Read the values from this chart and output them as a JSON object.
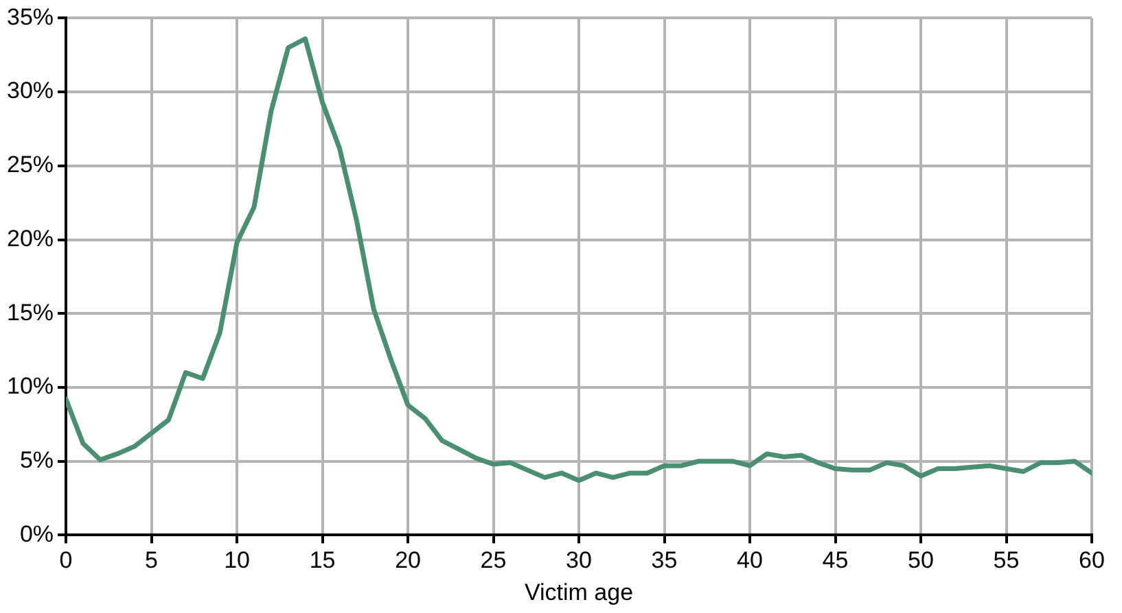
{
  "chart_data": {
    "type": "line",
    "xlabel": "Victim age",
    "x": [
      0,
      1,
      2,
      3,
      4,
      5,
      6,
      7,
      8,
      9,
      10,
      11,
      12,
      13,
      14,
      15,
      16,
      17,
      18,
      19,
      20,
      21,
      22,
      23,
      24,
      25,
      26,
      27,
      28,
      29,
      30,
      31,
      32,
      33,
      34,
      35,
      36,
      37,
      38,
      39,
      40,
      41,
      42,
      43,
      44,
      45,
      46,
      47,
      48,
      49,
      50,
      51,
      52,
      53,
      54,
      55,
      56,
      57,
      58,
      59,
      60
    ],
    "series": [
      {
        "color": "#4a8f72",
        "values": [
          9.2,
          6.2,
          5.1,
          5.5,
          6.0,
          6.9,
          7.8,
          11.0,
          10.6,
          13.7,
          19.8,
          22.2,
          28.7,
          33.0,
          33.6,
          29.3,
          26.2,
          21.3,
          15.3,
          11.9,
          8.8,
          7.9,
          6.4,
          5.8,
          5.2,
          4.8,
          4.9,
          4.4,
          3.9,
          4.2,
          3.7,
          4.2,
          3.9,
          4.2,
          4.2,
          4.7,
          4.7,
          5.0,
          5.0,
          5.0,
          4.7,
          5.5,
          5.3,
          5.4,
          4.9,
          4.5,
          4.4,
          4.4,
          4.9,
          4.7,
          4.0,
          4.5,
          4.5,
          4.6,
          4.7,
          4.5,
          4.3,
          4.9,
          4.9,
          5.0,
          4.2
        ]
      }
    ],
    "xlim": [
      0,
      60
    ],
    "xticks": [
      0,
      5,
      10,
      15,
      20,
      25,
      30,
      35,
      40,
      45,
      50,
      55,
      60
    ],
    "ylim": [
      0,
      35
    ],
    "yticks": [
      {
        "value": 0,
        "label": "0%"
      },
      {
        "value": 5,
        "label": "5%"
      },
      {
        "value": 10,
        "label": "10%"
      },
      {
        "value": 15,
        "label": "15%"
      },
      {
        "value": 20,
        "label": "20%"
      },
      {
        "value": 25,
        "label": "25%"
      },
      {
        "value": 30,
        "label": "30%"
      },
      {
        "value": 35,
        "label": "35%"
      }
    ],
    "grid": true,
    "legend": false,
    "marker": "none",
    "line_style": "solid"
  }
}
